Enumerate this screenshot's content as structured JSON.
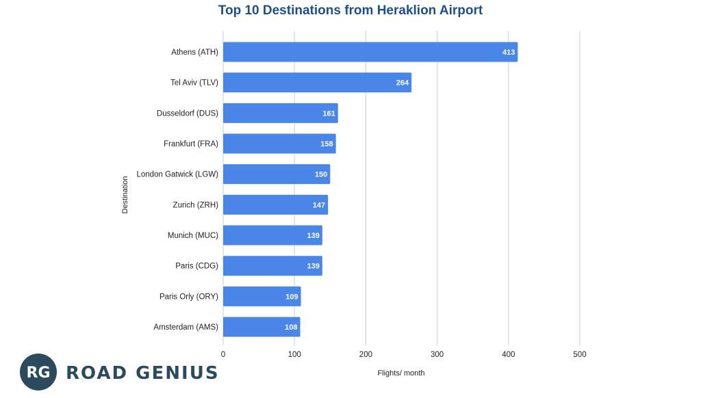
{
  "chart_data": {
    "type": "bar",
    "orientation": "horizontal",
    "title": "Top 10 Destinations from Heraklion Airport",
    "xlabel": "Flights/ month",
    "ylabel": "Destination",
    "categories": [
      "Athens (ATH)",
      "Tel Aviv (TLV)",
      "Dusseldorf (DUS)",
      "Frankfurt (FRA)",
      "London Gatwick (LGW)",
      "Zurich (ZRH)",
      "Munich (MUC)",
      "Paris (CDG)",
      "Paris Orly (ORY)",
      "Amsterdam (AMS)"
    ],
    "values": [
      413,
      264,
      161,
      158,
      150,
      147,
      139,
      139,
      109,
      108
    ],
    "data_labels": [
      "413",
      "264",
      "161",
      "158",
      "150",
      "147",
      "139",
      "139",
      "109",
      "108"
    ],
    "xlim": [
      0,
      500
    ],
    "xticks": [
      0,
      100,
      200,
      300,
      400,
      500
    ],
    "xtick_labels": [
      "0",
      "100",
      "200",
      "300",
      "400",
      "500"
    ],
    "grid": "vertical",
    "legend": "none"
  },
  "colors": {
    "bar": "#4a86e8",
    "title": "#1f4e8c",
    "grid": "#cccccc",
    "brand": "#2b4a5e"
  },
  "brand": {
    "badge": "RG",
    "name": "ROAD GENIUS"
  }
}
